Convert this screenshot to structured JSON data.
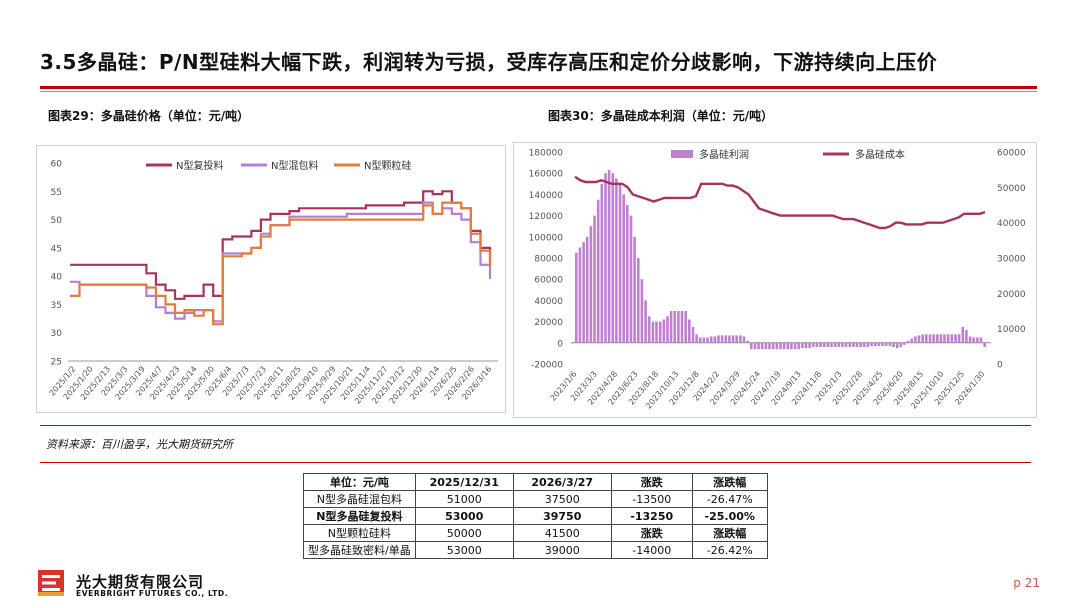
{
  "title": "3.5多晶硅：P/N型硅料大幅下跌，利润转为亏损，受库存高压和定价分歧影响，下游持续向上压价",
  "fig29_title": "图表29：多晶硅价格（单位：元/吨）",
  "fig30_title": "图表30：多晶硅成本利润（单位：元/吨）",
  "source": "资料来源：百川盈孚，光大期货研究所",
  "page": "p 21",
  "logo": {
    "cn": "光大期货有限公司",
    "en": "EVERBRIGHT FUTURES CO., LTD."
  },
  "colors": {
    "accent": "#c00000",
    "n_fu": "#a9325f",
    "n_hun": "#b57fd1",
    "n_keli": "#e07d3c",
    "profit": "#c080d0",
    "cost": "#a9325f"
  },
  "table": {
    "header": [
      "单位：元/吨",
      "2025/12/31",
      "2026/3/27",
      "涨跌",
      "涨跌幅"
    ],
    "rows": [
      [
        "N型多晶硅混包料",
        "51000",
        "37500",
        "-13500",
        "-26.47%"
      ],
      [
        "N型多晶硅复投料",
        "53000",
        "39750",
        "-13250",
        "-25.00%"
      ],
      [
        "N型颗粒硅料",
        "50000",
        "41500",
        "涨跌",
        "涨跌幅"
      ],
      [
        "型多晶硅致密料/单晶",
        "53000",
        "39000",
        "-14000",
        "-26.42%"
      ]
    ]
  },
  "chart_data": [
    {
      "type": "line",
      "title": "",
      "ylim": [
        25,
        60
      ],
      "yticks": [
        "25",
        "30",
        "35",
        "40",
        "45",
        "50",
        "55",
        "60"
      ],
      "xticks": [
        "2025/1/2",
        "2025/1/20",
        "2025/2/13",
        "2025/3/3",
        "2025/3/19",
        "2025/4/7",
        "2025/4/23",
        "2025/5/14",
        "2025/5/30",
        "2025/6/4",
        "2025/7/3",
        "2025/7/23",
        "2025/8/11",
        "2025/8/25",
        "2025/9/10",
        "2025/9/29",
        "2025/10/21",
        "2025/11/4",
        "2025/11/27",
        "2025/12/12",
        "2025/12/30",
        "2026/1/14",
        "2026/2/5",
        "2026/2/26",
        "2026/3/16"
      ],
      "legend_position": "top",
      "series": [
        {
          "name": "N型复投料",
          "values": [
            42,
            42,
            42,
            42,
            42,
            42,
            42,
            42,
            40.5,
            38.5,
            37.5,
            36,
            36.5,
            36.5,
            38.5,
            36.5,
            46.5,
            47,
            47,
            48,
            50,
            51,
            51,
            51.5,
            52,
            52,
            52,
            52,
            52,
            52,
            52,
            52.5,
            52.5,
            52.5,
            52.5,
            53,
            53,
            55,
            54.5,
            55,
            53,
            52,
            48,
            45,
            43
          ]
        },
        {
          "name": "N型混包料",
          "values": [
            39,
            38.5,
            38.5,
            38.5,
            38.5,
            38.5,
            38.5,
            38.5,
            36.5,
            34.5,
            33.5,
            32.5,
            33.5,
            34,
            34,
            32,
            44,
            44,
            44,
            45,
            47.5,
            49,
            49,
            50.5,
            50.5,
            50.5,
            50.5,
            50.5,
            50.5,
            51,
            51,
            51,
            51,
            51,
            51,
            51,
            51,
            53,
            51,
            52,
            51,
            50,
            46,
            42,
            39.5
          ]
        },
        {
          "name": "N型颗粒硅",
          "values": [
            36.5,
            38.5,
            38.5,
            38.5,
            38.5,
            38.5,
            38.5,
            38.5,
            38,
            36.5,
            35,
            33.5,
            34,
            33,
            34,
            31.5,
            43.5,
            43.5,
            44,
            45,
            47,
            49,
            49,
            50,
            50,
            50,
            50,
            50,
            50,
            50,
            50,
            50,
            50,
            50,
            50,
            50,
            50,
            52.5,
            51,
            53,
            53,
            52,
            47.5,
            44.5,
            41.5
          ]
        }
      ]
    },
    {
      "type": "bar+line",
      "title": "",
      "ylim_left": [
        -20000,
        180000
      ],
      "yticks_left": [
        "-20000",
        "0",
        "20000",
        "40000",
        "60000",
        "80000",
        "100000",
        "120000",
        "140000",
        "160000",
        "180000"
      ],
      "ylim_right": [
        0,
        60000
      ],
      "yticks_right": [
        "0",
        "10000",
        "20000",
        "30000",
        "40000",
        "50000",
        "60000"
      ],
      "xticks": [
        "2023/1/6",
        "2023/3/3",
        "2023/4/28",
        "2023/6/23",
        "2023/8/18",
        "2023/10/13",
        "2023/12/8",
        "2024/2/2",
        "2024/3/29",
        "2024/5/24",
        "2024/7/19",
        "2024/9/13",
        "2024/11/8",
        "2025/1/3",
        "2025/2/28",
        "2025/4/25",
        "2025/6/20",
        "2025/8/15",
        "2025/10/10",
        "2025/12/5",
        "2026/1/30"
      ],
      "legend_position": "top",
      "series": [
        {
          "name": "多晶硅利润",
          "kind": "bar",
          "values": [
            85000,
            90000,
            95000,
            100000,
            110000,
            120000,
            135000,
            150000,
            160000,
            163000,
            160000,
            155000,
            150000,
            140000,
            130000,
            120000,
            100000,
            80000,
            60000,
            40000,
            25000,
            20000,
            20000,
            20000,
            22000,
            25000,
            30000,
            30000,
            30000,
            30000,
            30000,
            22000,
            15000,
            8000,
            5000,
            5000,
            5000,
            6000,
            6000,
            7000,
            7000,
            7000,
            7000,
            7000,
            7000,
            7000,
            6000,
            2000,
            -6000,
            -6000,
            -6000,
            -6000,
            -6000,
            -6000,
            -6000,
            -6000,
            -6000,
            -6000,
            -6000,
            -6000,
            -6000,
            -6000,
            -5000,
            -5000,
            -5000,
            -4000,
            -4000,
            -4000,
            -4000,
            -4000,
            -4000,
            -4000,
            -4000,
            -4000,
            -4000,
            -4000,
            -4000,
            -4000,
            -4000,
            -4000,
            -4000,
            -3000,
            -3000,
            -3000,
            -3000,
            -3000,
            -3000,
            -4000,
            -5000,
            -4000,
            -2000,
            2000,
            4000,
            6000,
            7000,
            8000,
            8000,
            8000,
            8000,
            8000,
            8000,
            8000,
            8000,
            8000,
            8000,
            8000,
            15000,
            12000,
            6000,
            5000,
            5000,
            5000,
            -4000
          ]
        },
        {
          "name": "多晶硅成本",
          "kind": "line",
          "axis": "right",
          "values": [
            53000,
            52000,
            51500,
            51500,
            51500,
            52000,
            51500,
            51000,
            51000,
            51000,
            50000,
            48000,
            47500,
            47000,
            46500,
            46000,
            46500,
            47000,
            47000,
            47000,
            47000,
            47000,
            47000,
            47500,
            51000,
            51000,
            51000,
            51000,
            51000,
            50500,
            50500,
            50000,
            49000,
            48000,
            46000,
            44000,
            43500,
            43000,
            42500,
            42000,
            42000,
            42000,
            42000,
            42000,
            42000,
            42000,
            42000,
            42000,
            42000,
            42000,
            41500,
            41000,
            41000,
            41000,
            40500,
            40000,
            39500,
            39000,
            38500,
            38500,
            39000,
            40000,
            40000,
            39500,
            39500,
            39500,
            39500,
            40000,
            40000,
            40000,
            40000,
            40500,
            41000,
            41500,
            42500,
            42500,
            42500,
            42500,
            43000
          ]
        }
      ]
    }
  ]
}
